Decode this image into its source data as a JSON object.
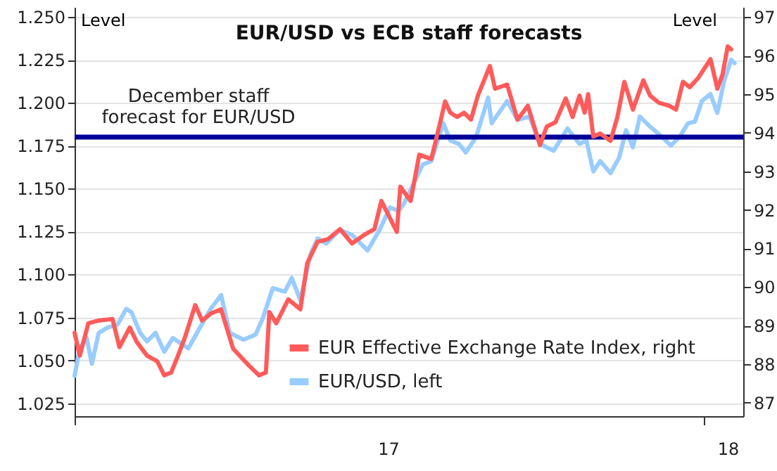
{
  "chart_data": {
    "type": "line",
    "title": "EUR/USD vs ECB staff forecasts",
    "ylabel": "Level",
    "y2label": "Level",
    "xlim": [
      "2017-01-01",
      "2018-01-24"
    ],
    "xticks": [
      {
        "value": "2017-01-01",
        "label": null
      },
      {
        "value": "2017-07-02",
        "label": "17"
      },
      {
        "value": "2018-01-01",
        "label": null
      },
      {
        "value": "2018-01-15",
        "label": "18"
      }
    ],
    "ylim": [
      1.0175,
      1.2557
    ],
    "yticks": [
      {
        "value": 1.025,
        "label": "1.025"
      },
      {
        "value": 1.05,
        "label": "1.050"
      },
      {
        "value": 1.075,
        "label": "1.075"
      },
      {
        "value": 1.1,
        "label": "1.100"
      },
      {
        "value": 1.125,
        "label": "1.125"
      },
      {
        "value": 1.15,
        "label": "1.150"
      },
      {
        "value": 1.175,
        "label": "1.175"
      },
      {
        "value": 1.2,
        "label": "1.200"
      },
      {
        "value": 1.225,
        "label": "1.225"
      },
      {
        "value": 1.25,
        "label": "1.250"
      }
    ],
    "y2lim": [
      86.65,
      97.26
    ],
    "y2ticks": [
      87,
      88,
      89,
      90,
      91,
      92,
      93,
      94,
      95,
      96,
      97
    ],
    "grid": "y",
    "legend": "bottom",
    "ref_lines": [
      {
        "axis": "y",
        "value": 1.18,
        "label": "December staff forecast for EUR/USD",
        "color": "#000099"
      }
    ],
    "series": [
      {
        "name": "EUR Effective Exchange Rate Index, right",
        "color": "#ff5b5b",
        "axis": "y2",
        "x": [
          "2017-01-01",
          "2017-01-04",
          "2017-01-09",
          "2017-01-15",
          "2017-01-23",
          "2017-01-27",
          "2017-02-02",
          "2017-02-06",
          "2017-02-12",
          "2017-02-18",
          "2017-02-22",
          "2017-02-26",
          "2017-03-02",
          "2017-03-06",
          "2017-03-12",
          "2017-03-16",
          "2017-03-21",
          "2017-03-27",
          "2017-04-03",
          "2017-04-12",
          "2017-04-18",
          "2017-04-22",
          "2017-04-24",
          "2017-04-28",
          "2017-05-05",
          "2017-05-12",
          "2017-05-16",
          "2017-05-22",
          "2017-05-28",
          "2017-06-04",
          "2017-06-11",
          "2017-06-18",
          "2017-06-24",
          "2017-06-28",
          "2017-07-07",
          "2017-07-09",
          "2017-07-15",
          "2017-07-20",
          "2017-07-27",
          "2017-07-31",
          "2017-08-04",
          "2017-08-07",
          "2017-08-11",
          "2017-08-15",
          "2017-08-19",
          "2017-08-23",
          "2017-08-30",
          "2017-09-02",
          "2017-09-09",
          "2017-09-15",
          "2017-09-21",
          "2017-09-28",
          "2017-10-02",
          "2017-10-07",
          "2017-10-13",
          "2017-10-17",
          "2017-10-21",
          "2017-10-24",
          "2017-10-26",
          "2017-10-29",
          "2017-11-02",
          "2017-11-08",
          "2017-11-12",
          "2017-11-16",
          "2017-11-21",
          "2017-11-27",
          "2017-12-01",
          "2017-12-06",
          "2017-12-12",
          "2017-12-16",
          "2017-12-20",
          "2017-12-24",
          "2017-12-29",
          "2018-01-05",
          "2018-01-09",
          "2018-01-12",
          "2018-01-15",
          "2018-01-17"
        ],
        "values": [
          88.81,
          88.22,
          89.06,
          89.13,
          89.17,
          88.44,
          88.95,
          88.58,
          88.22,
          88.07,
          87.71,
          87.78,
          88.22,
          88.69,
          89.53,
          89.13,
          89.31,
          89.42,
          88.4,
          87.97,
          87.71,
          87.78,
          89.35,
          89.06,
          89.68,
          89.42,
          90.62,
          91.17,
          91.24,
          91.5,
          91.13,
          91.35,
          91.5,
          92.23,
          91.43,
          92.6,
          92.23,
          93.43,
          93.32,
          94.05,
          94.81,
          94.52,
          94.41,
          94.52,
          94.34,
          94.96,
          95.73,
          95.14,
          95.25,
          94.34,
          94.7,
          93.68,
          94.16,
          94.27,
          94.89,
          94.41,
          94.96,
          94.52,
          95.0,
          93.9,
          93.98,
          93.79,
          94.41,
          95.32,
          94.6,
          95.36,
          94.96,
          94.78,
          94.7,
          94.6,
          95.32,
          95.18,
          95.43,
          95.91,
          95.14,
          95.51,
          96.24,
          96.16
        ]
      },
      {
        "name": "EUR/USD, left",
        "color": "#99ccff",
        "x": [
          "2017-01-01",
          "2017-01-04",
          "2017-01-08",
          "2017-01-11",
          "2017-01-15",
          "2017-01-20",
          "2017-01-26",
          "2017-01-31",
          "2017-02-03",
          "2017-02-08",
          "2017-02-12",
          "2017-02-17",
          "2017-02-22",
          "2017-02-27",
          "2017-03-08",
          "2017-03-13",
          "2017-03-21",
          "2017-03-27",
          "2017-04-01",
          "2017-04-09",
          "2017-04-16",
          "2017-04-20",
          "2017-04-26",
          "2017-05-03",
          "2017-05-07",
          "2017-05-12",
          "2017-05-18",
          "2017-05-22",
          "2017-05-27",
          "2017-06-04",
          "2017-06-11",
          "2017-06-20",
          "2017-06-27",
          "2017-07-03",
          "2017-07-08",
          "2017-07-11",
          "2017-07-22",
          "2017-07-27",
          "2017-08-03",
          "2017-08-07",
          "2017-08-12",
          "2017-08-16",
          "2017-08-22",
          "2017-08-29",
          "2017-08-31",
          "2017-09-09",
          "2017-09-15",
          "2017-09-22",
          "2017-09-28",
          "2017-10-06",
          "2017-10-14",
          "2017-10-21",
          "2017-10-25",
          "2017-10-29",
          "2017-11-02",
          "2017-11-08",
          "2017-11-13",
          "2017-11-17",
          "2017-11-21",
          "2017-11-25",
          "2017-12-01",
          "2017-12-08",
          "2017-12-13",
          "2017-12-18",
          "2017-12-23",
          "2017-12-27",
          "2017-12-31",
          "2018-01-05",
          "2018-01-09",
          "2018-01-13",
          "2018-01-17",
          "2018-01-19"
        ],
        "values": [
          1.041,
          1.057,
          1.063,
          1.048,
          1.066,
          1.069,
          1.071,
          1.08,
          1.078,
          1.066,
          1.061,
          1.066,
          1.055,
          1.063,
          1.057,
          1.066,
          1.08,
          1.088,
          1.066,
          1.062,
          1.065,
          1.074,
          1.092,
          1.09,
          1.098,
          1.085,
          1.112,
          1.121,
          1.118,
          1.126,
          1.123,
          1.114,
          1.126,
          1.139,
          1.137,
          1.141,
          1.164,
          1.166,
          1.188,
          1.178,
          1.176,
          1.171,
          1.18,
          1.203,
          1.188,
          1.201,
          1.19,
          1.192,
          1.176,
          1.172,
          1.185,
          1.176,
          1.178,
          1.16,
          1.166,
          1.159,
          1.168,
          1.184,
          1.174,
          1.192,
          1.186,
          1.18,
          1.175,
          1.18,
          1.188,
          1.189,
          1.201,
          1.205,
          1.194,
          1.213,
          1.225,
          1.223
        ]
      }
    ]
  }
}
